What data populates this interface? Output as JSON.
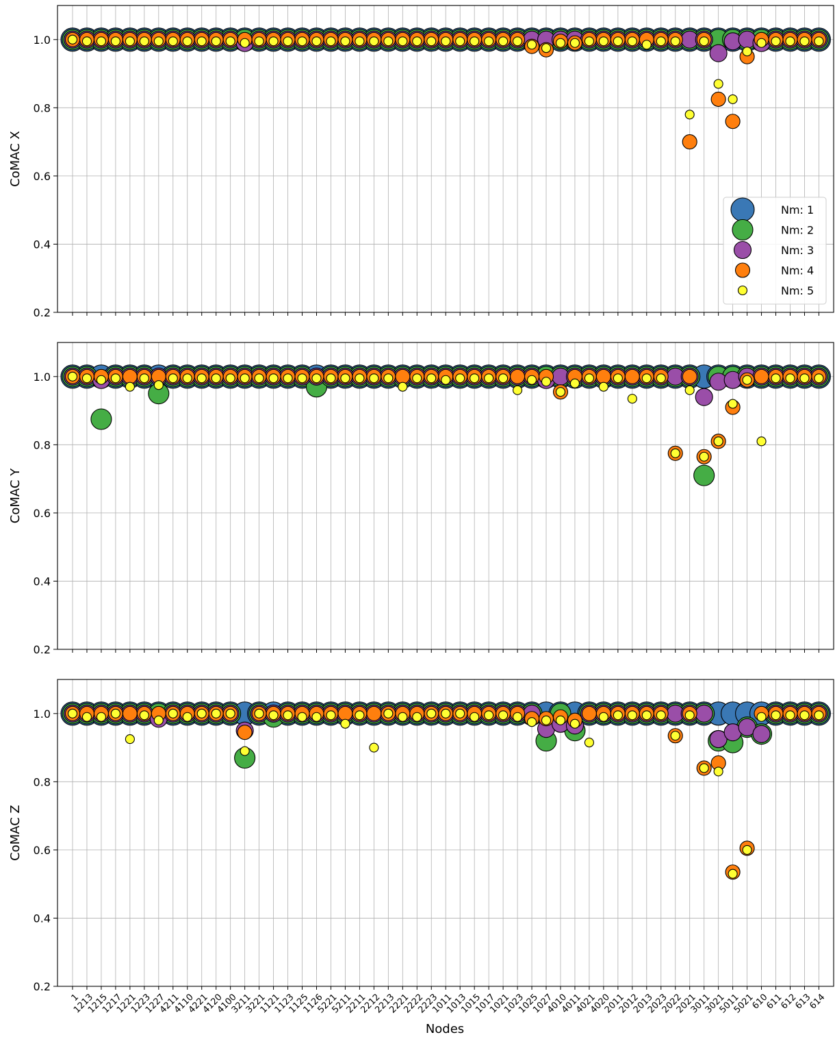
{
  "chart_data": {
    "type": "scatter",
    "xlabel": "Nodes",
    "nodes": [
      "1",
      "1213",
      "1215",
      "1217",
      "1221",
      "1223",
      "1227",
      "4211",
      "4110",
      "4221",
      "4120",
      "4100",
      "3211",
      "3221",
      "1121",
      "1123",
      "1125",
      "1126",
      "5221",
      "5211",
      "2211",
      "2212",
      "2213",
      "2221",
      "2222",
      "2223",
      "1011",
      "1013",
      "1015",
      "1017",
      "1021",
      "1023",
      "1025",
      "1027",
      "4010",
      "4011",
      "4021",
      "4020",
      "2011",
      "2012",
      "2013",
      "2023",
      "2022",
      "2021",
      "3011",
      "3021",
      "5011",
      "5021",
      "610",
      "611",
      "612",
      "613",
      "614"
    ],
    "ylim": [
      0.2,
      1.1
    ],
    "yticks": [
      "0.2",
      "0.4",
      "0.6",
      "0.8",
      "1.0"
    ],
    "grid": true,
    "legend": {
      "placement": "lower-right",
      "entries": [
        {
          "label": "Nm: 1",
          "color": "#3a78b5"
        },
        {
          "label": "Nm: 2",
          "color": "#45ad45"
        },
        {
          "label": "Nm: 3",
          "color": "#9a4ea8"
        },
        {
          "label": "Nm: 4",
          "color": "#ff7f0e"
        },
        {
          "label": "Nm: 5",
          "color": "#ffff33"
        }
      ]
    },
    "panels": [
      {
        "ylabel": "CoMAC X",
        "series": [
          {
            "values": [
              1,
              1,
              1,
              1,
              1,
              1,
              1,
              1,
              1,
              1,
              1,
              1,
              1,
              1,
              1,
              1,
              1,
              1,
              1,
              1,
              1,
              1,
              1,
              1,
              1,
              1,
              1,
              1,
              1,
              1,
              1,
              1,
              1,
              1,
              1,
              1,
              1,
              1,
              1,
              1,
              1,
              1,
              1,
              1,
              1,
              1,
              1,
              1,
              1,
              1,
              1,
              1,
              1
            ]
          },
          {
            "values": [
              1,
              1,
              1,
              1,
              1,
              1,
              1,
              1,
              1,
              1,
              1,
              1,
              1,
              1,
              1,
              1,
              1,
              1,
              1,
              1,
              1,
              1,
              1,
              1,
              1,
              1,
              1,
              1,
              1,
              1,
              1,
              1,
              1,
              1,
              1,
              1,
              1,
              1,
              1,
              1,
              1,
              1,
              1,
              1,
              1,
              1,
              1,
              1,
              1,
              1,
              1,
              1,
              1
            ]
          },
          {
            "values": [
              1,
              1,
              1,
              1,
              1,
              1,
              1,
              1,
              1,
              1,
              1,
              1,
              0.99,
              1,
              1,
              1,
              1,
              1,
              1,
              1,
              1,
              1,
              1,
              1,
              1,
              1,
              1,
              1,
              1,
              1,
              1,
              1,
              1,
              1,
              1,
              1,
              1,
              1,
              1,
              1,
              1,
              1,
              1,
              1,
              1,
              0.96,
              0.995,
              1,
              0.99,
              1,
              1,
              1,
              1
            ]
          },
          {
            "values": [
              1,
              1,
              1,
              1,
              1,
              1,
              1,
              1,
              1,
              1,
              1,
              1,
              1,
              1,
              1,
              1,
              1,
              1,
              1,
              1,
              1,
              1,
              1,
              1,
              1,
              1,
              1,
              1,
              1,
              1,
              1,
              1,
              0.98,
              0.97,
              0.995,
              0.99,
              1,
              1,
              1,
              1,
              1,
              1,
              1,
              0.7,
              1,
              0.825,
              0.76,
              0.95,
              1,
              1,
              1,
              1,
              1
            ]
          },
          {
            "values": [
              1,
              0.995,
              0.995,
              0.995,
              0.995,
              0.995,
              0.995,
              0.995,
              0.995,
              0.995,
              0.995,
              0.995,
              0.99,
              0.995,
              0.995,
              0.995,
              0.995,
              0.995,
              0.995,
              0.995,
              0.995,
              0.995,
              0.995,
              0.995,
              0.995,
              0.995,
              0.995,
              0.995,
              0.995,
              0.995,
              0.995,
              0.995,
              0.985,
              0.975,
              0.99,
              0.99,
              0.995,
              0.995,
              0.995,
              0.995,
              0.985,
              0.995,
              0.995,
              0.78,
              0.995,
              0.87,
              0.825,
              0.965,
              0.99,
              0.995,
              0.995,
              0.995,
              0.995
            ]
          }
        ]
      },
      {
        "ylabel": "CoMAC Y",
        "series": [
          {
            "values": [
              1,
              1,
              1,
              1,
              1,
              1,
              1,
              1,
              1,
              1,
              1,
              1,
              1,
              1,
              1,
              1,
              1,
              1,
              1,
              1,
              1,
              1,
              1,
              1,
              1,
              1,
              1,
              1,
              1,
              1,
              1,
              1,
              1,
              1,
              1,
              1,
              1,
              1,
              1,
              1,
              1,
              1,
              1,
              1,
              1,
              1,
              1,
              1,
              1,
              1,
              1,
              1,
              1
            ]
          },
          {
            "values": [
              1,
              1,
              0.875,
              1,
              1,
              1,
              0.95,
              1,
              1,
              1,
              1,
              1,
              1,
              1,
              1,
              1,
              1,
              0.97,
              1,
              1,
              1,
              1,
              1,
              1,
              1,
              1,
              1,
              1,
              1,
              1,
              1,
              1,
              1,
              1,
              1,
              1,
              1,
              1,
              1,
              1,
              1,
              1,
              1,
              1,
              0.71,
              1,
              1,
              1,
              1,
              1,
              1,
              1,
              1
            ]
          },
          {
            "values": [
              1,
              1,
              0.99,
              1,
              1,
              1,
              1,
              1,
              1,
              1,
              1,
              1,
              1,
              1,
              1,
              1,
              1,
              1,
              1,
              1,
              1,
              1,
              1,
              1,
              1,
              1,
              1,
              1,
              1,
              1,
              1,
              1,
              1,
              0.99,
              1,
              1,
              1,
              1,
              1,
              1,
              1,
              1,
              1,
              1,
              0.94,
              0.985,
              0.99,
              1,
              1,
              1,
              1,
              1,
              1
            ]
          },
          {
            "values": [
              1,
              1,
              1,
              1,
              1,
              1,
              1,
              1,
              1,
              1,
              1,
              1,
              1,
              1,
              1,
              1,
              1,
              1,
              1,
              1,
              1,
              1,
              1,
              1,
              1,
              1,
              1,
              1,
              1,
              1,
              1,
              1,
              1,
              1,
              0.955,
              1,
              1,
              1,
              1,
              1,
              1,
              1,
              0.775,
              1,
              0.765,
              0.81,
              0.91,
              0.99,
              1,
              1,
              1,
              1,
              1
            ]
          },
          {
            "values": [
              1,
              0.995,
              0.99,
              0.995,
              0.97,
              0.995,
              0.975,
              0.995,
              0.995,
              0.995,
              0.995,
              0.995,
              0.995,
              0.995,
              0.995,
              0.995,
              0.995,
              0.995,
              0.995,
              0.995,
              0.995,
              0.995,
              0.995,
              0.97,
              0.995,
              0.995,
              0.99,
              0.995,
              0.995,
              0.995,
              0.995,
              0.96,
              0.99,
              0.985,
              0.955,
              0.98,
              0.995,
              0.97,
              0.995,
              0.935,
              0.995,
              0.995,
              0.775,
              0.96,
              0.765,
              0.81,
              0.92,
              0.99,
              0.81,
              0.995,
              0.995,
              0.995,
              0.995
            ]
          }
        ]
      },
      {
        "ylabel": "CoMAC Z",
        "series": [
          {
            "values": [
              1,
              1,
              1,
              1,
              1,
              1,
              1,
              1,
              1,
              1,
              1,
              1,
              1,
              1,
              1,
              1,
              1,
              1,
              1,
              1,
              1,
              1,
              1,
              1,
              1,
              1,
              1,
              1,
              1,
              1,
              1,
              1,
              1,
              1,
              1,
              1,
              1,
              1,
              1,
              1,
              1,
              1,
              1,
              1,
              1,
              1,
              1,
              1,
              1,
              1,
              1,
              1,
              1
            ]
          },
          {
            "values": [
              1,
              1,
              1,
              1,
              1,
              1,
              1,
              1,
              1,
              1,
              1,
              1,
              0.87,
              1,
              0.99,
              1,
              1,
              1,
              1,
              1,
              1,
              1,
              1,
              1,
              1,
              1,
              1,
              1,
              1,
              1,
              1,
              1,
              1,
              0.92,
              1,
              0.95,
              1,
              1,
              1,
              1,
              1,
              1,
              1,
              1,
              1,
              0.92,
              0.915,
              0.96,
              0.94,
              1,
              1,
              1,
              1
            ]
          },
          {
            "values": [
              1,
              1,
              1,
              1,
              1,
              1,
              0.985,
              1,
              1,
              1,
              1,
              1,
              0.95,
              1,
              1,
              1,
              1,
              1,
              1,
              1,
              1,
              1,
              1,
              1,
              1,
              1,
              1,
              1,
              1,
              1,
              1,
              1,
              1,
              0.955,
              0.97,
              0.965,
              1,
              1,
              1,
              1,
              1,
              1,
              1,
              1,
              1,
              0.925,
              0.945,
              0.96,
              0.94,
              1,
              1,
              1,
              1
            ]
          },
          {
            "values": [
              1,
              1,
              1,
              1,
              1,
              1,
              1,
              1,
              1,
              1,
              1,
              1,
              0.945,
              1,
              1,
              1,
              1,
              1,
              1,
              1,
              1,
              1,
              1,
              1,
              1,
              1,
              1,
              1,
              1,
              1,
              1,
              1,
              0.985,
              0.985,
              0.99,
              0.98,
              1,
              1,
              1,
              1,
              1,
              1,
              0.935,
              1,
              0.84,
              0.855,
              0.535,
              0.605,
              1,
              1,
              1,
              1,
              1
            ]
          },
          {
            "values": [
              1,
              0.99,
              0.99,
              1,
              0.925,
              0.995,
              0.98,
              1,
              0.99,
              1,
              1,
              1,
              0.89,
              1,
              0.995,
              0.995,
              0.99,
              0.99,
              0.995,
              0.97,
              0.995,
              0.9,
              1,
              0.99,
              0.99,
              1,
              1,
              1,
              0.99,
              0.995,
              0.995,
              0.99,
              0.975,
              0.98,
              0.98,
              0.97,
              0.915,
              0.99,
              0.995,
              0.995,
              0.995,
              0.995,
              0.935,
              0.995,
              0.84,
              0.83,
              0.53,
              0.6,
              0.99,
              0.995,
              0.995,
              0.995,
              0.995
            ]
          }
        ]
      }
    ]
  }
}
